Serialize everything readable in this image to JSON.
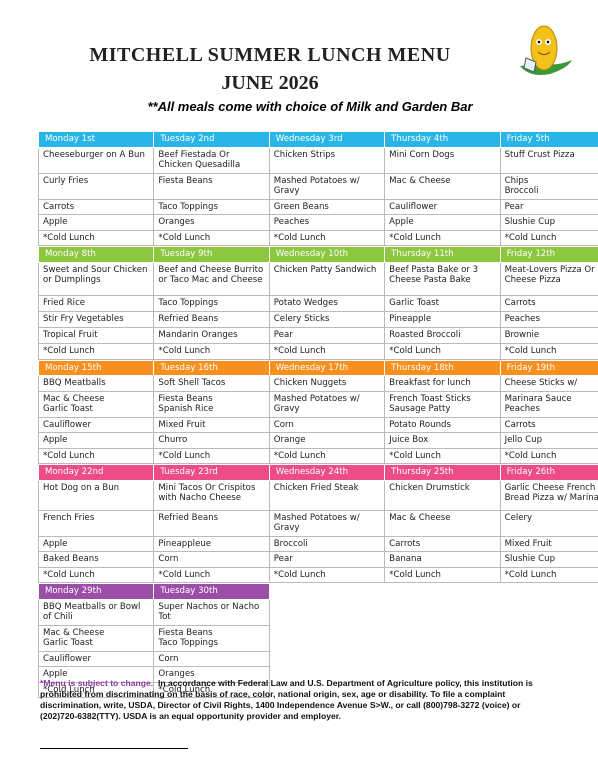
{
  "header": {
    "title": "MITCHELL SUMMER LUNCH MENU",
    "month": "JUNE 2026",
    "subtitle": "**All meals come with choice of Milk and Garden Bar"
  },
  "weeks": [
    {
      "color": "#29b5e8",
      "headers": [
        "Monday 1st",
        "Tuesday 2nd",
        "Wednesday 3rd",
        "Thursday 4th",
        "Friday 5th"
      ],
      "rows": [
        [
          "Cheeseburger on A Bun",
          "Beef Fiestada Or Chicken Quesadilla",
          "Chicken Strips",
          "Mini Corn Dogs",
          "Stuff Crust Pizza"
        ],
        [
          "Curly Fries",
          "Fiesta Beans",
          "Mashed Potatoes w/ Gravy",
          "Mac & Cheese",
          "Chips\nBroccoli"
        ],
        [
          "Carrots",
          "Taco Toppings",
          "Green Beans",
          "Cauliflower",
          "Pear"
        ],
        [
          "Apple",
          "Oranges",
          "Peaches",
          "Apple",
          "Slushie Cup"
        ],
        [
          "*Cold Lunch",
          "*Cold Lunch",
          "*Cold Lunch",
          "*Cold Lunch",
          "*Cold Lunch"
        ]
      ]
    },
    {
      "color": "#8dc63f",
      "headers": [
        "Monday 8th",
        "Tuesday 9th",
        "Wednesday 10th",
        "Thursday 11th",
        "Friday 12th"
      ],
      "rows": [
        [
          "Sweet and Sour Chicken or Dumplings",
          "Beef and Cheese Burrito or Taco Mac and Cheese",
          "Chicken Patty Sandwich",
          "Beef Pasta Bake or 3 Cheese Pasta Bake",
          "Meat-Lovers Pizza Or Cheese Pizza"
        ],
        [
          "Fried Rice",
          "Taco Toppings",
          "Potato Wedges",
          "Garlic Toast",
          "Carrots"
        ],
        [
          "Stir Fry Vegetables",
          "Refried Beans",
          "Celery Sticks",
          "Pineapple",
          "Peaches"
        ],
        [
          "Tropical Fruit",
          "Mandarin Oranges",
          "Pear",
          "Roasted Broccoli",
          "Brownie"
        ],
        [
          "*Cold Lunch",
          "*Cold Lunch",
          "*Cold Lunch",
          "*Cold Lunch",
          "*Cold Lunch"
        ]
      ]
    },
    {
      "color": "#f7901e",
      "headers": [
        "Monday 15th",
        "Tuesday 16th",
        "Wednesday 17th",
        "Thursday 18th",
        "Friday 19th"
      ],
      "rows": [
        [
          "BBQ Meatballs",
          "Soft Shell Tacos",
          "Chicken Nuggets",
          "Breakfast for lunch",
          "Cheese Sticks w/"
        ],
        [
          "Mac & Cheese\nGarlic Toast",
          "Fiesta Beans\nSpanish Rice",
          "Mashed Potatoes w/ Gravy",
          "French Toast Sticks\nSausage Patty",
          "Marinara Sauce\nPeaches"
        ],
        [
          "Cauliflower",
          "Mixed Fruit",
          "Corn",
          "Potato Rounds",
          "Carrots"
        ],
        [
          "Apple",
          "Churro",
          "Orange",
          "Juice Box",
          "Jello Cup"
        ],
        [
          "*Cold Lunch",
          "*Cold Lunch",
          "*Cold Lunch",
          "*Cold Lunch",
          "*Cold Lunch"
        ]
      ]
    },
    {
      "color": "#ec4d86",
      "headers": [
        "Monday 22nd",
        "Tuesday 23rd",
        "Wednesday 24th",
        "Thursday 25th",
        "Friday 26th"
      ],
      "rows": [
        [
          "Hot Dog on a Bun",
          "Mini Tacos Or Crispitos with Nacho Cheese",
          "Chicken Fried Steak",
          "Chicken Drumstick",
          "Garlic Cheese French Bread Pizza w/ Marinara"
        ],
        [
          "French Fries",
          "Refried Beans",
          "Mashed Potatoes w/ Gravy",
          "Mac & Cheese",
          "Celery"
        ],
        [
          "Apple",
          "Pineappleue",
          "Broccoli",
          "Carrots",
          "Mixed Fruit"
        ],
        [
          "Baked Beans",
          "Corn",
          "Pear",
          "Banana",
          "Slushie Cup"
        ],
        [
          "*Cold Lunch",
          "*Cold Lunch",
          "*Cold Lunch",
          "*Cold Lunch",
          "*Cold Lunch"
        ]
      ]
    },
    {
      "color": "#9b4ea6",
      "headers": [
        "Monday 29th",
        "Tuesday 30th"
      ],
      "rows": [
        [
          "BBQ Meatballs or Bowl of Chili",
          "Super Nachos or Nacho Tot"
        ],
        [
          "Mac & Cheese\nGarlic Toast",
          "Fiesta Beans\nTaco Toppings"
        ],
        [
          "Cauliflower",
          "Corn"
        ],
        [
          "Apple",
          "Oranges"
        ],
        [
          "*Cold Lunch",
          "*Cold Lunch"
        ]
      ]
    }
  ],
  "footer": {
    "note": "*Menu is subject to change.",
    "statement": "In accordance with Federal Law and U.S. Department of Agriculture policy, this institution is prohibited from discriminating on the basis of race, color, national origin, sex, age or disability. To file a complaint discrimination, write, USDA, Director of Civil Rights, 1400 Independence Avenue S>W., or call (800)798-3272 (voice) or (202)720-6382(TTY). USDA is an equal opportunity provider and employer."
  }
}
